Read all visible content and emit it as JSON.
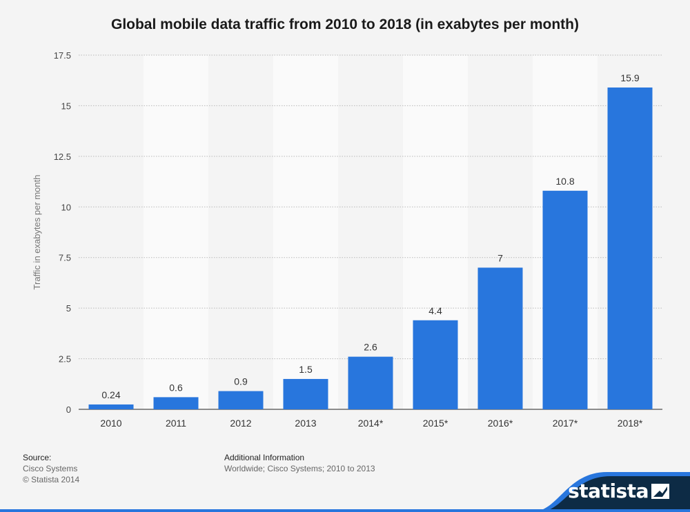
{
  "chart_data": {
    "type": "bar",
    "title": "Global mobile data traffic from 2010 to 2018 (in exabytes per month)",
    "categories": [
      "2010",
      "2011",
      "2012",
      "2013",
      "2014*",
      "2015*",
      "2016*",
      "2017*",
      "2018*"
    ],
    "values": [
      0.24,
      0.6,
      0.9,
      1.5,
      2.6,
      4.4,
      7,
      10.8,
      15.9
    ],
    "value_labels": [
      "0.24",
      "0.6",
      "0.9",
      "1.5",
      "2.6",
      "4.4",
      "7",
      "10.8",
      "15.9"
    ],
    "ylabel": "Traffic in exabytes per month",
    "xlabel": "",
    "ylim": [
      0,
      17.5
    ],
    "yticks": [
      0,
      2.5,
      5,
      7.5,
      10,
      12.5,
      15,
      17.5
    ],
    "ytick_labels": [
      "0",
      "2.5",
      "5",
      "7.5",
      "10",
      "12.5",
      "15",
      "17.5"
    ],
    "bar_color": "#2876dd",
    "grid": true
  },
  "footer": {
    "source_heading": "Source:",
    "source_lines": [
      "Cisco Systems",
      "© Statista 2014"
    ],
    "info_heading": "Additional Information",
    "info_text": "Worldwide; Cisco Systems; 2010 to 2013"
  },
  "brand": {
    "name": "statista",
    "color": "#0d2b45",
    "accent": "#2876dd"
  }
}
